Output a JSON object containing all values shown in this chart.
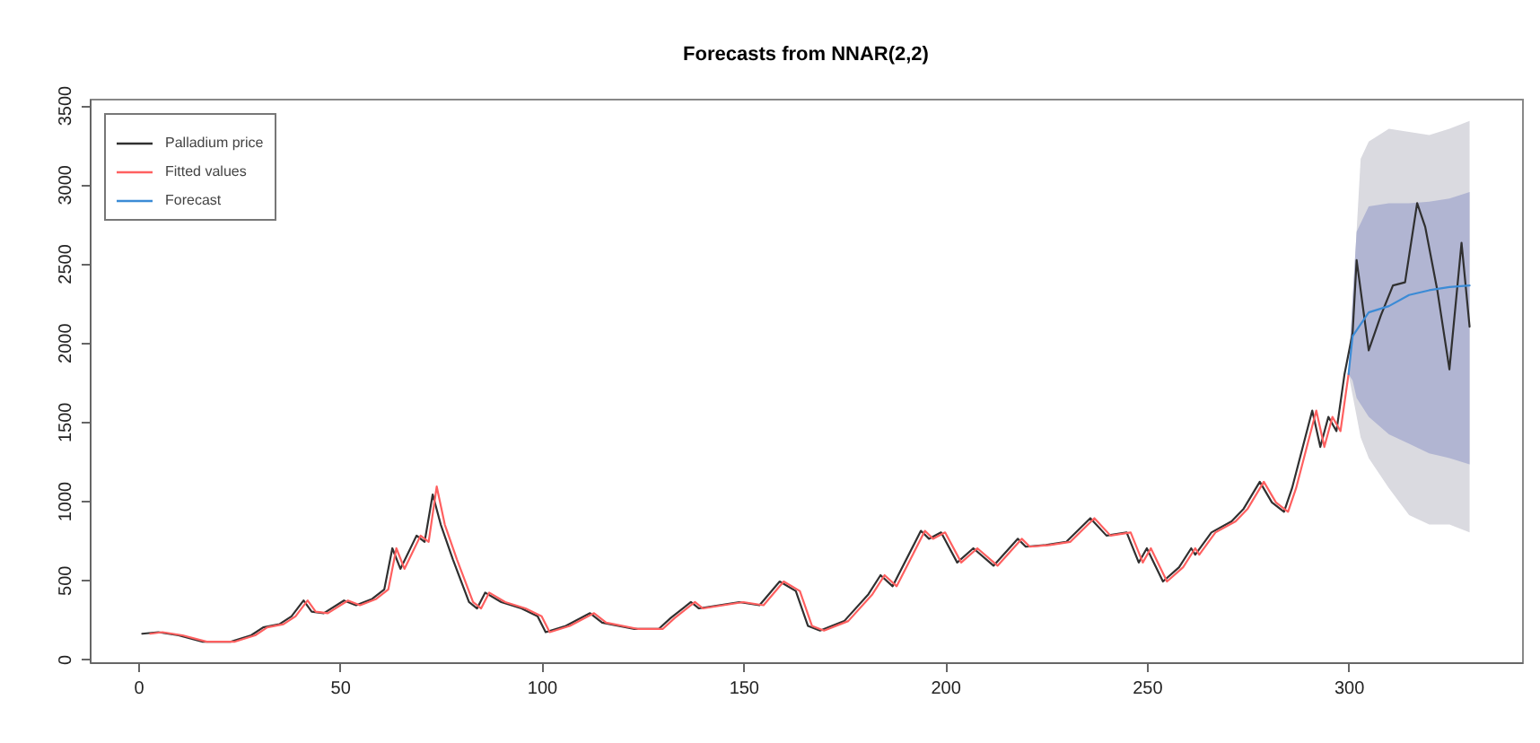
{
  "chart_data": {
    "type": "line",
    "title": "Forecasts from NNAR(2,2)",
    "xlim": [
      -12,
      343
    ],
    "ylim": [
      -20,
      3540
    ],
    "xticks": [
      0,
      50,
      100,
      150,
      200,
      250,
      300
    ],
    "yticks": [
      0,
      500,
      1000,
      1500,
      2000,
      2500,
      3000,
      3500
    ],
    "legend": "top left",
    "series": [
      {
        "color": "#dadae0",
        "x": [
          300,
          303,
          305,
          310,
          315,
          320,
          325,
          330
        ],
        "values": [
          null,
          null,
          null,
          null,
          null,
          null,
          null,
          null
        ],
        "lower": [
          1800,
          1400,
          1270,
          1080,
          910,
          850,
          850,
          800
        ],
        "upper": [
          1800,
          3160,
          3270,
          3350,
          3330,
          3310,
          3350,
          3400
        ]
      },
      {
        "color": "#b1b5d2",
        "x": [
          300,
          301,
          302,
          305,
          310,
          315,
          320,
          325,
          330
        ],
        "values": [
          null,
          null,
          null,
          null,
          null,
          null,
          null,
          null,
          null
        ],
        "lower": [
          1800,
          1760,
          1650,
          1530,
          1420,
          1360,
          1300,
          1270,
          1230
        ],
        "upper": [
          1800,
          2280,
          2700,
          2860,
          2880,
          2880,
          2890,
          2910,
          2950
        ]
      },
      {
        "name": "Palladium price",
        "color": "#303030",
        "x": [
          1,
          5,
          10,
          16,
          23,
          28,
          31,
          35,
          38,
          41,
          43,
          46,
          51,
          54,
          58,
          61,
          63,
          65,
          69,
          71,
          73,
          75,
          78,
          82,
          84,
          86,
          90,
          95,
          99,
          101,
          106,
          112,
          115,
          123,
          129,
          132,
          137,
          139,
          149,
          154,
          159,
          163,
          166,
          169,
          175,
          181,
          184,
          187,
          194,
          196,
          199,
          203,
          207,
          212,
          218,
          220,
          225,
          230,
          236,
          240,
          245,
          248,
          250,
          254,
          258,
          261,
          262,
          266,
          271,
          274,
          278,
          281,
          284,
          286,
          291,
          293,
          295,
          297,
          299,
          301,
          302,
          305,
          308,
          311,
          314,
          317,
          319,
          322,
          325,
          328,
          330
        ],
        "values": [
          160,
          170,
          150,
          110,
          110,
          150,
          200,
          220,
          270,
          370,
          300,
          290,
          370,
          340,
          380,
          440,
          700,
          570,
          780,
          740,
          1040,
          850,
          630,
          360,
          320,
          420,
          360,
          320,
          270,
          170,
          210,
          290,
          230,
          190,
          190,
          260,
          360,
          320,
          360,
          340,
          490,
          430,
          210,
          180,
          240,
          410,
          530,
          460,
          810,
          760,
          800,
          610,
          700,
          590,
          760,
          710,
          720,
          740,
          890,
          780,
          800,
          610,
          700,
          490,
          580,
          700,
          660,
          800,
          870,
          950,
          1120,
          990,
          930,
          1080,
          1570,
          1340,
          1530,
          1440,
          1800,
          2060,
          2520,
          1950,
          2170,
          2360,
          2380,
          2880,
          2730,
          2330,
          1830,
          2630,
          2100
        ]
      },
      {
        "name": "Fitted values",
        "color": "#ff6060",
        "x": [
          3,
          6,
          11,
          17,
          24,
          29,
          32,
          36,
          39,
          42,
          44,
          47,
          52,
          55,
          59,
          62,
          64,
          66,
          70,
          72,
          74,
          76,
          79,
          83,
          85,
          87,
          91,
          96,
          100,
          102,
          107,
          113,
          116,
          124,
          130,
          133,
          138,
          140,
          150,
          155,
          160,
          164,
          167,
          170,
          176,
          182,
          185,
          188,
          195,
          197,
          200,
          204,
          208,
          213,
          219,
          221,
          226,
          231,
          237,
          241,
          246,
          249,
          251,
          255,
          259,
          262,
          263,
          267,
          272,
          275,
          279,
          282,
          285,
          287,
          292,
          294,
          296,
          298,
          300
        ],
        "values": [
          160,
          170,
          150,
          110,
          110,
          150,
          200,
          220,
          270,
          370,
          300,
          290,
          370,
          340,
          380,
          440,
          700,
          570,
          780,
          740,
          1090,
          850,
          630,
          360,
          320,
          420,
          360,
          320,
          270,
          170,
          210,
          290,
          230,
          190,
          190,
          260,
          360,
          320,
          360,
          340,
          490,
          430,
          210,
          180,
          240,
          410,
          530,
          460,
          810,
          760,
          800,
          610,
          700,
          590,
          760,
          710,
          720,
          740,
          890,
          780,
          800,
          610,
          700,
          490,
          580,
          700,
          660,
          800,
          870,
          950,
          1120,
          990,
          930,
          1080,
          1570,
          1340,
          1530,
          1440,
          1800
        ]
      },
      {
        "name": "Forecast",
        "color": "#3b8bd6",
        "x": [
          300,
          301,
          305,
          310,
          315,
          320,
          325,
          330
        ],
        "values": [
          1800,
          2040,
          2190,
          2230,
          2300,
          2330,
          2350,
          2360
        ]
      }
    ]
  }
}
